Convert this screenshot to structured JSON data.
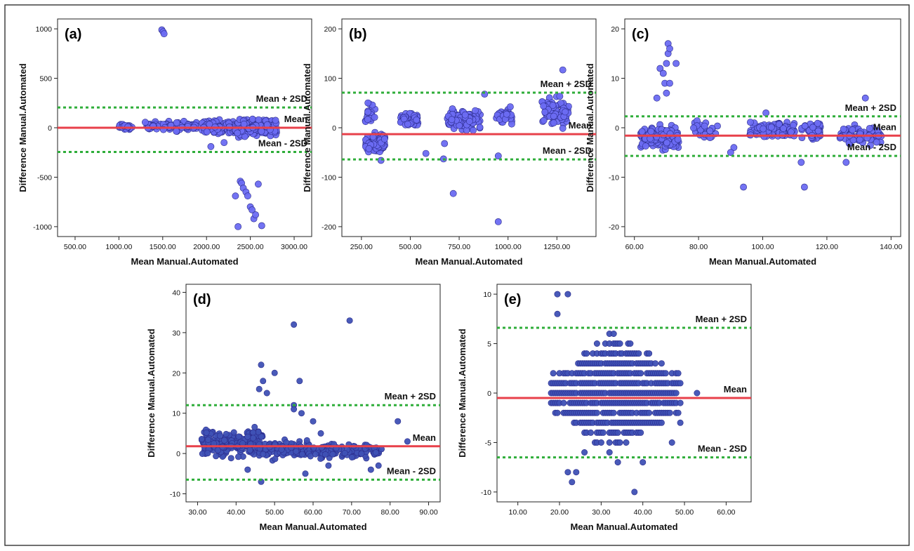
{
  "figure": {
    "colors": {
      "mean_line": "#e8404a",
      "sd_line": "#2fae3a",
      "point_fill_light": "#6c6cf2",
      "point_fill_dark": "#3f51b5",
      "point_stroke": "#2a2a8a"
    }
  },
  "chart_data": [
    {
      "id": "a",
      "type": "scatter",
      "panel_label": "(a)",
      "xlabel": "Mean Manual.Automated",
      "ylabel": "Difference Manual.Automated",
      "xlim": [
        300,
        3200
      ],
      "ylim": [
        -1100,
        1100
      ],
      "xticks": [
        500,
        1000,
        1500,
        2000,
        2500,
        3000
      ],
      "xtick_labels": [
        "500.00",
        "1000.00",
        "1500.00",
        "2000.00",
        "2500.00",
        "3000.00"
      ],
      "yticks": [
        -1000,
        -500,
        0,
        500,
        1000
      ],
      "ytick_labels": [
        "-1000",
        "-500",
        "0",
        "500",
        "1000"
      ],
      "mean": 0,
      "upper_sd": 205,
      "lower_sd": -245,
      "labels": {
        "upper": "Mean + 2SD",
        "mean": "Mean",
        "lower": "Mean - 2SD"
      },
      "point_style": "light",
      "outliers": [
        [
          1490,
          990
        ],
        [
          1505,
          970
        ],
        [
          1515,
          950
        ],
        [
          2330,
          -690
        ],
        [
          2360,
          -1000
        ],
        [
          2385,
          -540
        ],
        [
          2400,
          -560
        ],
        [
          2420,
          -610
        ],
        [
          2450,
          -650
        ],
        [
          2470,
          -690
        ],
        [
          2500,
          -800
        ],
        [
          2520,
          -830
        ],
        [
          2540,
          -920
        ],
        [
          2560,
          -880
        ],
        [
          2590,
          -570
        ],
        [
          2630,
          -990
        ],
        [
          2050,
          -190
        ],
        [
          2200,
          -150
        ]
      ],
      "clusters": [
        {
          "x": [
            1000,
            1150
          ],
          "y": [
            -40,
            60
          ],
          "n": 30
        },
        {
          "x": [
            1300,
            1600
          ],
          "y": [
            -40,
            80
          ],
          "n": 45
        },
        {
          "x": [
            1650,
            1900
          ],
          "y": [
            -60,
            90
          ],
          "n": 40
        },
        {
          "x": [
            1950,
            2250
          ],
          "y": [
            -90,
            100
          ],
          "n": 90
        },
        {
          "x": [
            2250,
            2800
          ],
          "y": [
            -110,
            130
          ],
          "n": 260
        }
      ]
    },
    {
      "id": "b",
      "type": "scatter",
      "panel_label": "(b)",
      "xlabel": "Mean Manual.Automated",
      "ylabel": "Difference Manual.Automated",
      "xlim": [
        150,
        1450
      ],
      "ylim": [
        -220,
        220
      ],
      "xticks": [
        250,
        500,
        750,
        1000,
        1250
      ],
      "xtick_labels": [
        "250.00",
        "500.00",
        "750.00",
        "1000.00",
        "1250.00"
      ],
      "yticks": [
        -200,
        -100,
        0,
        100,
        200
      ],
      "ytick_labels": [
        "-200",
        "-100",
        "0",
        "100",
        "200"
      ],
      "mean": -13,
      "upper_sd": 71,
      "lower_sd": -64,
      "labels": {
        "upper": "Mean + 2SD",
        "mean": "Mean",
        "lower": "Mean - 2SD"
      },
      "point_style": "light",
      "outliers": [
        [
          1280,
          117
        ],
        [
          880,
          68
        ],
        [
          720,
          -133
        ],
        [
          950,
          -190
        ],
        [
          950,
          -57
        ],
        [
          580,
          -52
        ],
        [
          670,
          -63
        ],
        [
          350,
          -66
        ],
        [
          675,
          -32
        ]
      ],
      "clusters": [
        {
          "x": [
            270,
            370
          ],
          "y": [
            -60,
            -5
          ],
          "n": 110
        },
        {
          "x": [
            270,
            320
          ],
          "y": [
            0,
            55
          ],
          "n": 25
        },
        {
          "x": [
            450,
            540
          ],
          "y": [
            0,
            35
          ],
          "n": 45
        },
        {
          "x": [
            690,
            860
          ],
          "y": [
            -10,
            40
          ],
          "n": 100
        },
        {
          "x": [
            940,
            1020
          ],
          "y": [
            5,
            45
          ],
          "n": 30
        },
        {
          "x": [
            1170,
            1320
          ],
          "y": [
            -5,
            70
          ],
          "n": 80
        }
      ]
    },
    {
      "id": "c",
      "type": "scatter",
      "panel_label": "(c)",
      "xlabel": "Mean Manual.Automated",
      "ylabel": "Difference Manual.Automated",
      "xlim": [
        57,
        143
      ],
      "ylim": [
        -22,
        22
      ],
      "xticks": [
        60,
        80,
        100,
        120,
        140
      ],
      "xtick_labels": [
        "60.00",
        "80.00",
        "100.00",
        "120.00",
        "140.00"
      ],
      "yticks": [
        -20,
        -10,
        0,
        10,
        20
      ],
      "ytick_labels": [
        "-20",
        "-10",
        "0",
        "10",
        "20"
      ],
      "mean": -1.6,
      "upper_sd": 2.3,
      "lower_sd": -5.7,
      "labels": {
        "upper": "Mean + 2SD",
        "mean": "Mean",
        "lower": "Mean - 2SD"
      },
      "point_style": "light",
      "outliers": [
        [
          67,
          6
        ],
        [
          68,
          12
        ],
        [
          69,
          11
        ],
        [
          69.5,
          9
        ],
        [
          70,
          13
        ],
        [
          70.5,
          15
        ],
        [
          70.5,
          17
        ],
        [
          71,
          16
        ],
        [
          70,
          7
        ],
        [
          71,
          9
        ],
        [
          73,
          13
        ],
        [
          94,
          -12
        ],
        [
          113,
          -12
        ],
        [
          91,
          -4
        ],
        [
          112,
          -7
        ],
        [
          126,
          -7
        ],
        [
          132,
          6
        ],
        [
          90,
          -5
        ],
        [
          101,
          3
        ]
      ],
      "clusters": [
        {
          "x": [
            62,
            74
          ],
          "y": [
            -5,
            1
          ],
          "n": 160
        },
        {
          "x": [
            78,
            86
          ],
          "y": [
            -3,
            2
          ],
          "n": 30
        },
        {
          "x": [
            96,
            110
          ],
          "y": [
            -3,
            2
          ],
          "n": 110
        },
        {
          "x": [
            112,
            118
          ],
          "y": [
            -3,
            2
          ],
          "n": 40
        },
        {
          "x": [
            124,
            137
          ],
          "y": [
            -4,
            1
          ],
          "n": 80
        }
      ]
    },
    {
      "id": "d",
      "type": "scatter",
      "panel_label": "(d)",
      "xlabel": "Mean Manual.Automated",
      "ylabel": "Difference Manual.Automated",
      "xlim": [
        27,
        93
      ],
      "ylim": [
        -12,
        42
      ],
      "xticks": [
        30,
        40,
        50,
        60,
        70,
        80,
        90
      ],
      "xtick_labels": [
        "30.00",
        "40.00",
        "50.00",
        "60.00",
        "70.00",
        "80.00",
        "90.00"
      ],
      "yticks": [
        -10,
        0,
        10,
        20,
        30,
        40
      ],
      "ytick_labels": [
        "-10",
        "0",
        "10",
        "20",
        "30",
        "40"
      ],
      "mean": 1.8,
      "upper_sd": 12,
      "lower_sd": -6.5,
      "labels": {
        "upper": "Mean + 2SD",
        "mean": "Mean",
        "lower": "Mean - 2SD"
      },
      "point_style": "dark",
      "outliers": [
        [
          55,
          32
        ],
        [
          69.5,
          33
        ],
        [
          46.5,
          22
        ],
        [
          50,
          20
        ],
        [
          56.5,
          18
        ],
        [
          47,
          18
        ],
        [
          46,
          16
        ],
        [
          48,
          15
        ],
        [
          55,
          12
        ],
        [
          55,
          11
        ],
        [
          57,
          10
        ],
        [
          60,
          8
        ],
        [
          62,
          5
        ],
        [
          82,
          8
        ],
        [
          84.5,
          3
        ],
        [
          46.5,
          -7
        ],
        [
          43,
          -4
        ],
        [
          75,
          -4
        ],
        [
          77,
          -3
        ],
        [
          64,
          -3
        ],
        [
          58,
          -5
        ]
      ],
      "clusters": [
        {
          "x": [
            31,
            47
          ],
          "y": [
            -2,
            7
          ],
          "n": 220
        },
        {
          "x": [
            47,
            60
          ],
          "y": [
            -2,
            4
          ],
          "n": 110
        },
        {
          "x": [
            60,
            78
          ],
          "y": [
            -2,
            3
          ],
          "n": 90
        }
      ]
    },
    {
      "id": "e",
      "type": "scatter",
      "panel_label": "(e)",
      "xlabel": "Mean Manual.Automated",
      "ylabel": "Difference Manual.Automated",
      "xlim": [
        5,
        66
      ],
      "ylim": [
        -11,
        11
      ],
      "xticks": [
        10,
        20,
        30,
        40,
        50,
        60
      ],
      "xtick_labels": [
        "10.00",
        "20.00",
        "30.00",
        "40.00",
        "50.00",
        "60.00"
      ],
      "yticks": [
        -10,
        -5,
        0,
        5,
        10
      ],
      "ytick_labels": [
        "-10",
        "-5",
        "0",
        "5",
        "10"
      ],
      "mean": -0.5,
      "upper_sd": 6.6,
      "lower_sd": -6.5,
      "labels": {
        "upper": "Mean + 2SD",
        "mean": "Mean",
        "lower": "Mean - 2SD"
      },
      "point_style": "dark",
      "outliers": [
        [
          19.5,
          10
        ],
        [
          22,
          10
        ],
        [
          19.5,
          8
        ],
        [
          22,
          -8
        ],
        [
          23,
          -9
        ],
        [
          24,
          -8
        ],
        [
          26,
          -6
        ],
        [
          34,
          -7
        ],
        [
          40,
          -7
        ],
        [
          38,
          -10
        ],
        [
          53,
          0
        ],
        [
          49,
          -3
        ],
        [
          47,
          -5
        ]
      ],
      "grid_band": {
        "x": [
          18,
          49
        ],
        "y_min": -6,
        "y_max": 6,
        "step_x": 0.5
      }
    }
  ]
}
